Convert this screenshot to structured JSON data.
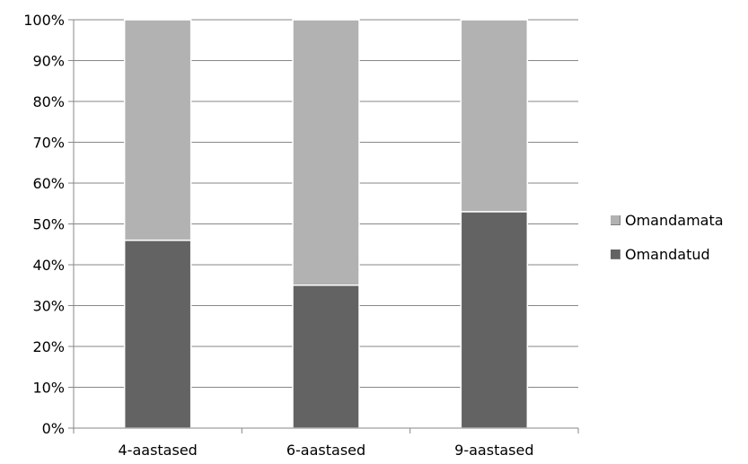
{
  "chart_data": {
    "type": "bar",
    "stacked": true,
    "title": "",
    "xlabel": "",
    "ylabel": "",
    "categories": [
      "4-aastased",
      "6-aastased",
      "9-aastased"
    ],
    "series": [
      {
        "name": "Omandatud",
        "values": [
          46,
          35,
          53
        ],
        "color": "#636363"
      },
      {
        "name": "Omandamata",
        "values": [
          54,
          65,
          47
        ],
        "color": "#b2b2b2"
      }
    ],
    "ylim": [
      0,
      100
    ],
    "yticks": [
      "0%",
      "10%",
      "20%",
      "30%",
      "40%",
      "50%",
      "60%",
      "70%",
      "80%",
      "90%",
      "100%"
    ],
    "grid": true,
    "legend_position": "right"
  },
  "legend": {
    "items": [
      {
        "label": "Omandamata",
        "color": "#b2b2b2"
      },
      {
        "label": "Omandatud",
        "color": "#636363"
      }
    ]
  }
}
